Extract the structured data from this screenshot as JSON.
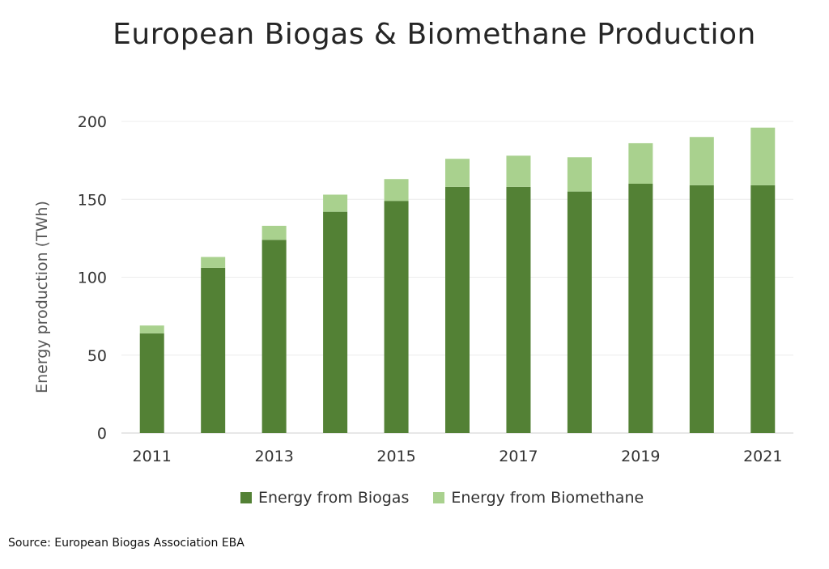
{
  "chart_data": {
    "type": "bar",
    "stacked": true,
    "title": "European Biogas & Biomethane Production",
    "ylabel": "Energy production (TWh)",
    "xlabel": "",
    "ylim": [
      0,
      200
    ],
    "yticks": [
      0,
      50,
      100,
      150,
      200
    ],
    "categories": [
      "2011",
      "2012",
      "2013",
      "2014",
      "2015",
      "2016",
      "2017",
      "2018",
      "2019",
      "2020",
      "2021"
    ],
    "xtick_labels": [
      "2011",
      "",
      "2013",
      "",
      "2015",
      "",
      "2017",
      "",
      "2019",
      "",
      "2021"
    ],
    "series": [
      {
        "name": "Energy from Biogas",
        "color": "#538135",
        "values": [
          64,
          106,
          124,
          142,
          149,
          158,
          158,
          155,
          160,
          159,
          159
        ]
      },
      {
        "name": "Energy from Biomethane",
        "color": "#a9d18e",
        "values": [
          5,
          7,
          9,
          11,
          14,
          18,
          20,
          22,
          26,
          31,
          37
        ]
      }
    ],
    "grid": true,
    "legend_position": "bottom"
  },
  "source": "Source: European Biogas Association EBA"
}
